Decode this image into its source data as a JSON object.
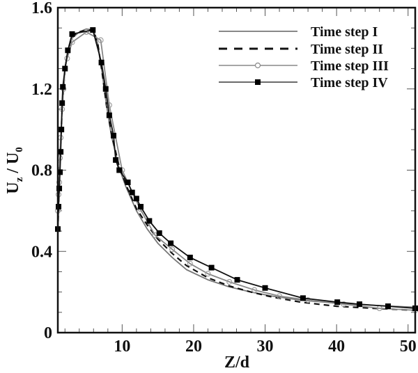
{
  "chart_data": {
    "type": "line",
    "title": "",
    "xlabel": "Z/d",
    "ylabel": "U_z / U_0",
    "ylabel_parts": {
      "main1": "U",
      "sub1": "z",
      "sep": " / ",
      "main2": "U",
      "sub2": "0"
    },
    "xlim": [
      1,
      51
    ],
    "ylim": [
      0,
      1.6
    ],
    "xticks": [
      10,
      20,
      30,
      40,
      50
    ],
    "yticks": [
      0,
      0.4,
      0.8,
      1.2,
      1.6
    ],
    "ytick_labels": [
      "0",
      "0.4",
      "0.8",
      "1.2",
      "1.6"
    ],
    "xtick_labels": [
      "10",
      "20",
      "30",
      "40",
      "50"
    ],
    "grid": false,
    "legend_position": "upper right",
    "series": [
      {
        "name": "Time step I",
        "style": "solid",
        "color": "#777777",
        "marker": "none",
        "x": [
          1.0,
          1.3,
          1.6,
          2.0,
          2.5,
          3.0,
          4.0,
          5.0,
          6.0,
          6.6,
          7.2,
          7.8,
          8.5,
          9.5,
          10.5,
          12,
          13.5,
          15,
          17,
          19,
          22,
          25,
          28,
          31,
          35,
          40,
          45,
          51
        ],
        "y": [
          0.5,
          0.85,
          1.1,
          1.3,
          1.4,
          1.45,
          1.48,
          1.495,
          1.49,
          1.42,
          1.28,
          1.12,
          0.97,
          0.82,
          0.72,
          0.6,
          0.51,
          0.44,
          0.37,
          0.31,
          0.26,
          0.225,
          0.2,
          0.18,
          0.16,
          0.145,
          0.135,
          0.125
        ]
      },
      {
        "name": "Time step II",
        "style": "dashed",
        "color": "#111111",
        "marker": "none",
        "x": [
          1.0,
          1.3,
          1.6,
          2.0,
          2.5,
          3.0,
          4.0,
          5.0,
          6.0,
          6.6,
          7.2,
          7.8,
          8.5,
          9.5,
          10.5,
          12,
          13.5,
          15,
          17,
          19,
          22,
          25,
          28,
          31,
          35,
          40,
          45,
          51
        ],
        "y": [
          0.5,
          0.85,
          1.1,
          1.3,
          1.4,
          1.46,
          1.48,
          1.49,
          1.49,
          1.42,
          1.28,
          1.12,
          0.98,
          0.83,
          0.73,
          0.61,
          0.53,
          0.46,
          0.39,
          0.33,
          0.27,
          0.23,
          0.2,
          0.175,
          0.15,
          0.13,
          0.12,
          0.11
        ]
      },
      {
        "name": "Time step III",
        "style": "solid",
        "color": "#888888",
        "marker": "circle-open",
        "x": [
          1.0,
          1.1,
          1.2,
          1.3,
          1.4,
          1.6,
          1.8,
          2.0,
          2.3,
          3.0,
          5.0,
          7.0,
          8.2,
          10.0,
          12.5,
          14.6,
          17.0,
          19.5,
          22.0,
          25.0,
          28.5,
          32.0,
          36.0,
          41.0,
          46.0,
          51.0
        ],
        "y": [
          0.6,
          0.68,
          0.74,
          0.86,
          0.96,
          1.1,
          1.2,
          1.3,
          1.35,
          1.43,
          1.48,
          1.44,
          1.12,
          0.8,
          0.61,
          0.48,
          0.41,
          0.34,
          0.29,
          0.25,
          0.21,
          0.18,
          0.16,
          0.14,
          0.12,
          0.11
        ]
      },
      {
        "name": "Time step IV",
        "style": "solid",
        "color": "#111111",
        "marker": "square-filled",
        "x": [
          1.0,
          1.1,
          1.2,
          1.3,
          1.4,
          1.5,
          1.6,
          1.7,
          2.0,
          2.4,
          3.0,
          5.9,
          7.1,
          7.7,
          8.2,
          8.8,
          9.1,
          9.6,
          10.8,
          11.4,
          12.0,
          12.6,
          13.8,
          15.2,
          16.8,
          19.5,
          22.5,
          26.1,
          30.0,
          35.3,
          40.1,
          43.2,
          47.2,
          51.0
        ],
        "y": [
          0.51,
          0.62,
          0.71,
          0.79,
          0.89,
          1.0,
          1.13,
          1.21,
          1.3,
          1.39,
          1.47,
          1.49,
          1.33,
          1.2,
          1.07,
          0.97,
          0.85,
          0.8,
          0.74,
          0.69,
          0.66,
          0.62,
          0.55,
          0.49,
          0.44,
          0.37,
          0.32,
          0.26,
          0.22,
          0.17,
          0.15,
          0.14,
          0.13,
          0.12
        ]
      }
    ]
  },
  "legend": {
    "items": [
      {
        "label": "Time step I"
      },
      {
        "label": "Time step II"
      },
      {
        "label": "Time step III"
      },
      {
        "label": "Time step IV"
      }
    ]
  }
}
